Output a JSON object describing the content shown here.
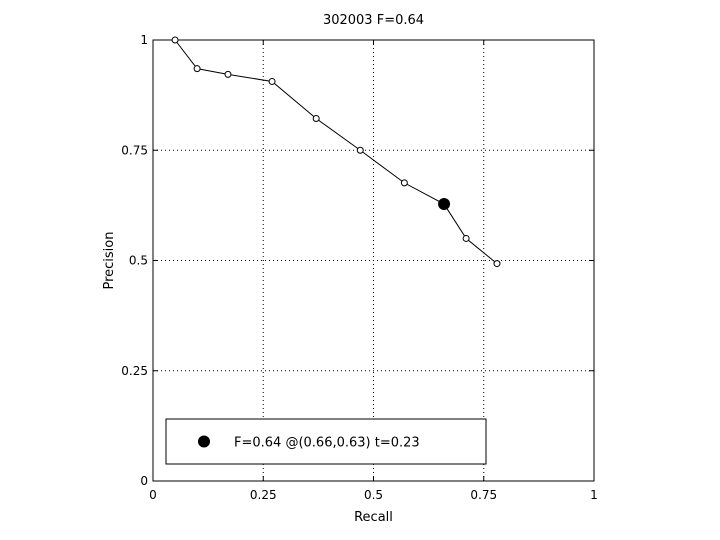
{
  "chart_data": {
    "type": "line",
    "title": "302003 F=0.64",
    "xlabel": "Recall",
    "ylabel": "Precision",
    "xlim": [
      0,
      1
    ],
    "ylim": [
      0,
      1
    ],
    "xticks": [
      "0",
      "0.25",
      "0.5",
      "0.75",
      "1"
    ],
    "yticks": [
      "0",
      "0.25",
      "0.5",
      "0.75",
      "1"
    ],
    "grid": true,
    "series": [
      {
        "x": [
          0.05,
          0.1,
          0.17,
          0.27,
          0.37,
          0.47,
          0.57,
          0.66,
          0.71,
          0.78
        ],
        "y": [
          1.0,
          0.935,
          0.922,
          0.906,
          0.822,
          0.75,
          0.676,
          0.628,
          0.55,
          0.493
        ]
      }
    ],
    "best_point": {
      "x": 0.66,
      "y": 0.628
    },
    "legend": {
      "position": "bottom",
      "text": "F=0.64 @(0.66,0.63) t=0.23"
    }
  }
}
